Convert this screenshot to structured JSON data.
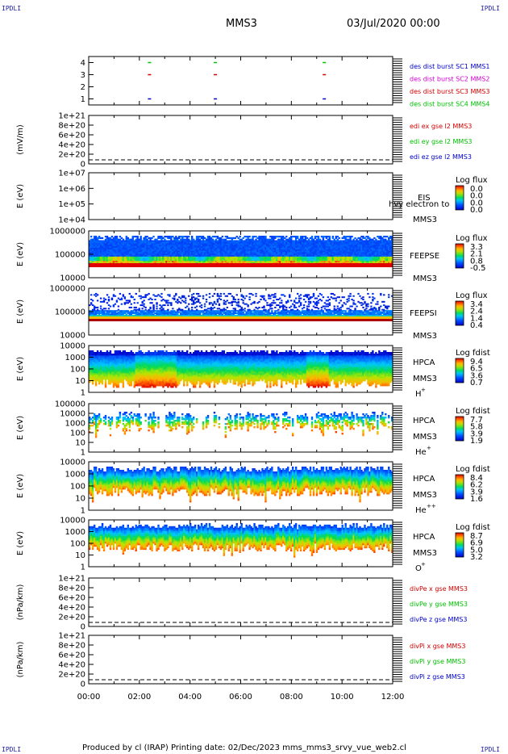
{
  "corners": {
    "tl": "IPDLI",
    "tr": "IPDLI",
    "bl": "IPDLI",
    "br": "IPDLI"
  },
  "header": {
    "spacecraft": "MMS3",
    "date": "03/Jul/2020 00:00"
  },
  "footer": {
    "text": "Produced by cl (IRAP)   Printing date: 02/Dec/2023   mms_mms3_srvy_vue_web2.cl"
  },
  "colors": {
    "red": "#d40000",
    "green": "#00c000",
    "blue": "#0000c8",
    "magenta": "#d400d4"
  },
  "chart_data": {
    "type": "multi-panel time series / spectrogram",
    "x": {
      "ticks": [
        "00:00",
        "02:00",
        "04:00",
        "06:00",
        "08:00",
        "10:00",
        "12:00"
      ],
      "range_hours": [
        0,
        12
      ]
    },
    "panels": [
      {
        "id": "p1",
        "type": "scatter",
        "ylabel": "",
        "yticks": [
          "1",
          "2",
          "3",
          "4"
        ],
        "ylim": [
          0.5,
          4.5
        ],
        "legend": [
          "des dist burst SC1 MMS1",
          "des dist burst SC2 MMS2",
          "des dist burst SC3 MMS3",
          "des dist burst SC4 MMS4"
        ],
        "legend_colors": [
          "#0000c8",
          "#d400d4",
          "#d40000",
          "#00c000"
        ],
        "points": [
          {
            "t": 2.4,
            "y": 4,
            "c": "#00c000"
          },
          {
            "t": 2.4,
            "y": 3,
            "c": "#d40000"
          },
          {
            "t": 2.4,
            "y": 1,
            "c": "#0000c8"
          },
          {
            "t": 5.0,
            "y": 4,
            "c": "#00c000"
          },
          {
            "t": 5.0,
            "y": 3,
            "c": "#d40000"
          },
          {
            "t": 5.0,
            "y": 1,
            "c": "#0000c8"
          },
          {
            "t": 9.3,
            "y": 4,
            "c": "#00c000"
          },
          {
            "t": 9.3,
            "y": 3,
            "c": "#d40000"
          },
          {
            "t": 9.3,
            "y": 1,
            "c": "#0000c8"
          }
        ]
      },
      {
        "id": "p2",
        "type": "line",
        "ylabel": "(mV/m)",
        "yticks": [
          "0",
          "2e+20",
          "4e+20",
          "6e+20",
          "8e+20",
          "1e+21"
        ],
        "legend": [
          "edi ex gse l2 MMS3",
          "edi ey gse l2 MMS3",
          "edi ez gse l2 MMS3"
        ],
        "legend_colors": [
          "#d40000",
          "#00c000",
          "#0000c8"
        ]
      },
      {
        "id": "p3",
        "type": "heatmap",
        "ylabel": "E (eV)",
        "yticks": [
          "1e+04",
          "1e+05",
          "1e+06",
          "1e+07"
        ],
        "label": [
          "EIS",
          "MMS3"
        ],
        "overlay": "hvy electron to",
        "cbar_title": "Log flux",
        "cbar_ticks": [
          "0.0",
          "0.0",
          "0.0",
          "0.0"
        ]
      },
      {
        "id": "p4",
        "type": "heatmap",
        "ylabel": "E (eV)",
        "yticks": [
          "10000",
          "100000",
          "1000000"
        ],
        "label": [
          "FEEPSE",
          "MMS3"
        ],
        "cbar_title": "Log flux",
        "cbar_ticks": [
          "3.3",
          "2.1",
          "0.8",
          "-0.5"
        ]
      },
      {
        "id": "p5",
        "type": "heatmap",
        "ylabel": "E (eV)",
        "yticks": [
          "10000",
          "100000",
          "1000000"
        ],
        "label": [
          "FEEPSI",
          "MMS3"
        ],
        "cbar_title": "Log flux",
        "cbar_ticks": [
          "3.4",
          "2.4",
          "1.4",
          "0.4"
        ]
      },
      {
        "id": "p6",
        "type": "heatmap",
        "ylabel": "E (eV)",
        "yticks": [
          "1",
          "10",
          "100",
          "1000",
          "10000"
        ],
        "label": [
          "HPCA",
          "MMS3"
        ],
        "species": "H",
        "species_sup": "+",
        "cbar_title": "Log fdist",
        "cbar_ticks": [
          "9.4",
          "6.5",
          "3.6",
          "0.7"
        ]
      },
      {
        "id": "p7",
        "type": "heatmap",
        "ylabel": "E (eV)",
        "yticks": [
          "1",
          "10",
          "100",
          "1000",
          "10000",
          "100000"
        ],
        "label": [
          "HPCA",
          "MMS3"
        ],
        "species": "He",
        "species_sup": "+",
        "cbar_title": "Log fdist",
        "cbar_ticks": [
          "7.7",
          "5.8",
          "3.9",
          "1.9"
        ]
      },
      {
        "id": "p8",
        "type": "heatmap",
        "ylabel": "E (eV)",
        "yticks": [
          "1",
          "10",
          "100",
          "1000",
          "10000"
        ],
        "label": [
          "HPCA",
          "MMS3"
        ],
        "species": "He",
        "species_sup": "++",
        "cbar_title": "Log fdist",
        "cbar_ticks": [
          "8.4",
          "6.2",
          "3.9",
          "1.6"
        ]
      },
      {
        "id": "p9",
        "type": "heatmap",
        "ylabel": "E (eV)",
        "yticks": [
          "1",
          "10",
          "100",
          "1000",
          "10000"
        ],
        "label": [
          "HPCA",
          "MMS3"
        ],
        "species": "O",
        "species_sup": "+",
        "cbar_title": "Log fdist",
        "cbar_ticks": [
          "8.7",
          "6.9",
          "5.0",
          "3.2"
        ]
      },
      {
        "id": "p10",
        "type": "line",
        "ylabel": "(nPa/km)",
        "yticks": [
          "0",
          "2e+20",
          "4e+20",
          "6e+20",
          "8e+20",
          "1e+21"
        ],
        "legend": [
          "divPe x gse MMS3",
          "divPe y gse MMS3",
          "divPe z gse MMS3"
        ],
        "legend_colors": [
          "#d40000",
          "#00c000",
          "#0000c8"
        ]
      },
      {
        "id": "p11",
        "type": "line",
        "ylabel": "(nPa/km)",
        "yticks": [
          "0",
          "2e+20",
          "4e+20",
          "6e+20",
          "8e+20",
          "1e+21"
        ],
        "legend": [
          "divPi x gse MMS3",
          "divPi y gse MMS3",
          "divPi z gse MMS3"
        ],
        "legend_colors": [
          "#d40000",
          "#00c000",
          "#0000c8"
        ]
      }
    ]
  }
}
